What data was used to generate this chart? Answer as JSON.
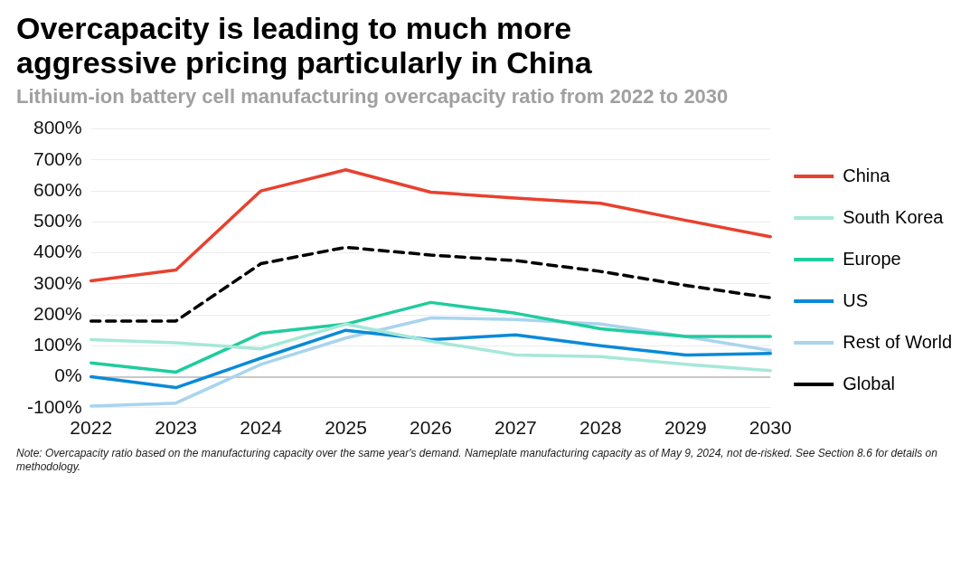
{
  "chart_data": {
    "type": "line",
    "title": "Overcapacity is leading to much more aggressive pricing particularly in China",
    "subtitle": "Lithium-ion battery cell manufacturing overcapacity ratio from 2022 to 2030",
    "categories": [
      "2022",
      "2023",
      "2024",
      "2025",
      "2026",
      "2027",
      "2028",
      "2029",
      "2030"
    ],
    "series": [
      {
        "name": "China",
        "color": "#e8412e",
        "values": [
          310,
          345,
          600,
          668,
          596,
          577,
          560,
          505,
          452
        ]
      },
      {
        "name": "South Korea",
        "color": "#a6e8d8",
        "values": [
          120,
          110,
          90,
          170,
          115,
          70,
          65,
          40,
          20
        ]
      },
      {
        "name": "Europe",
        "color": "#1fcc9e",
        "values": [
          45,
          15,
          140,
          170,
          240,
          205,
          155,
          130,
          130
        ]
      },
      {
        "name": "US",
        "color": "#0a8ad8",
        "values": [
          0,
          -35,
          60,
          150,
          120,
          135,
          100,
          70,
          75
        ]
      },
      {
        "name": "Rest of World",
        "color": "#a9d4ee",
        "values": [
          -95,
          -85,
          40,
          125,
          190,
          185,
          170,
          130,
          85
        ]
      },
      {
        "name": "Global",
        "color": "#000000",
        "line_style": "dashed",
        "values": [
          180,
          180,
          365,
          418,
          393,
          375,
          340,
          295,
          255
        ]
      }
    ],
    "ylim": [
      -100,
      800
    ],
    "yticks": [
      {
        "value": -100,
        "label": "-100%"
      },
      {
        "value": 0,
        "label": "0%"
      },
      {
        "value": 100,
        "label": "100%"
      },
      {
        "value": 200,
        "label": "200%"
      },
      {
        "value": 300,
        "label": "300%"
      },
      {
        "value": 400,
        "label": "400%"
      },
      {
        "value": 500,
        "label": "500%"
      },
      {
        "value": 600,
        "label": "600%"
      },
      {
        "value": 700,
        "label": "700%"
      },
      {
        "value": 800,
        "label": "800%"
      }
    ],
    "grid": "y",
    "legend": "right",
    "marker": "none",
    "annotations": [
      "Note: Overcapacity ratio based on the manufacturing capacity over the same year's demand. Nameplate manufacturing capacity as of May 9, 2024, not de-risked. See Section 8.6 for details on methodology."
    ]
  }
}
